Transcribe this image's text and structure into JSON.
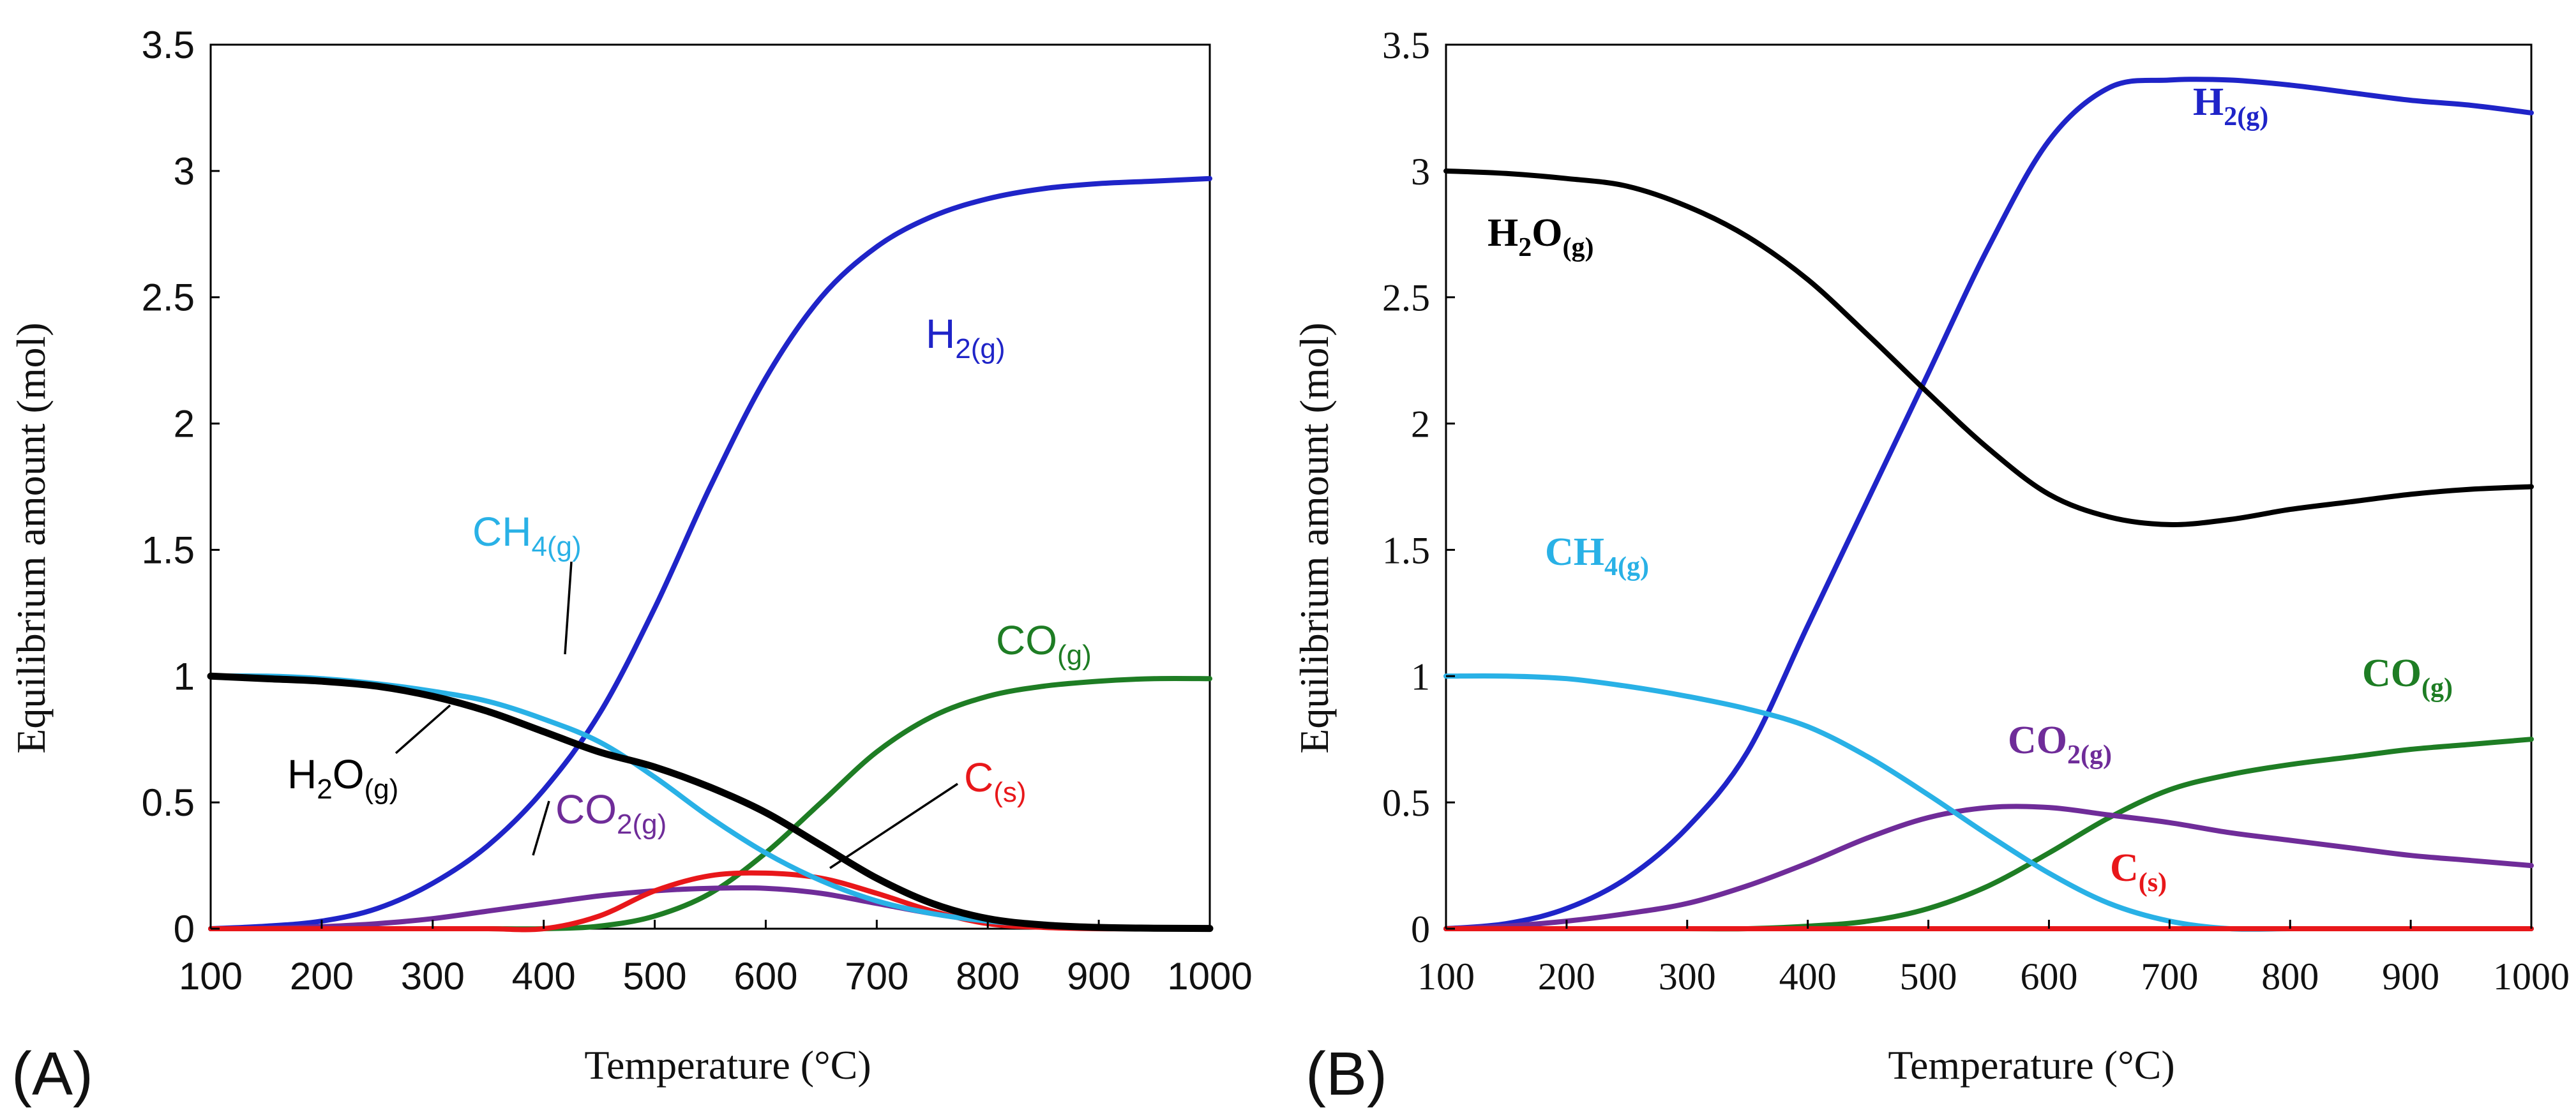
{
  "chart_data": [
    {
      "type": "line",
      "panel_label": "(A)",
      "title": "",
      "xlabel": "Temperature (°C)",
      "ylabel": "Equilibrium amount (mol)",
      "xlim": [
        100,
        1000
      ],
      "ylim": [
        0,
        3.5
      ],
      "x_ticks": [
        "100",
        "200",
        "300",
        "400",
        "500",
        "600",
        "700",
        "800",
        "900",
        "1000"
      ],
      "y_ticks": [
        "0",
        "0.5",
        "1",
        "1.5",
        "2",
        "2.5",
        "3",
        "3.5"
      ],
      "grid": false,
      "legend": "inline labels",
      "x": [
        100,
        150,
        200,
        250,
        300,
        350,
        400,
        450,
        500,
        550,
        600,
        650,
        700,
        750,
        800,
        850,
        900,
        950,
        1000
      ],
      "series": [
        {
          "name": "H2(g)",
          "base": "H",
          "sub": "2(g)",
          "color": "#1f24c8",
          "values": [
            0.0,
            0.01,
            0.03,
            0.08,
            0.18,
            0.33,
            0.55,
            0.85,
            1.27,
            1.75,
            2.18,
            2.5,
            2.7,
            2.82,
            2.89,
            2.93,
            2.95,
            2.96,
            2.97
          ]
        },
        {
          "name": "CH4(g)",
          "base": "CH",
          "sub": "4(g)",
          "color": "#29b1e6",
          "values": [
            1.0,
            1.0,
            0.99,
            0.97,
            0.94,
            0.9,
            0.83,
            0.74,
            0.6,
            0.44,
            0.3,
            0.19,
            0.11,
            0.06,
            0.03,
            0.015,
            0.007,
            0.003,
            0.001
          ]
        },
        {
          "name": "H2O(g)",
          "base": "H",
          "sub": "2",
          "base2": "O",
          "sub2": "(g)",
          "color": "#000000",
          "values": [
            1.0,
            0.99,
            0.98,
            0.96,
            0.92,
            0.86,
            0.78,
            0.7,
            0.64,
            0.56,
            0.46,
            0.33,
            0.2,
            0.1,
            0.04,
            0.015,
            0.005,
            0.002,
            0.001
          ]
        },
        {
          "name": "CO(g)",
          "base": "CO",
          "sub": "(g)",
          "color": "#1e7d24",
          "values": [
            0,
            0,
            0,
            0,
            0,
            0,
            0.0,
            0.01,
            0.05,
            0.14,
            0.3,
            0.5,
            0.7,
            0.84,
            0.92,
            0.96,
            0.98,
            0.99,
            0.99
          ]
        },
        {
          "name": "CO2(g)",
          "base": "CO",
          "sub": "2(g)",
          "color": "#6f2c99",
          "values": [
            0,
            0.002,
            0.008,
            0.02,
            0.04,
            0.07,
            0.1,
            0.13,
            0.15,
            0.16,
            0.16,
            0.14,
            0.1,
            0.06,
            0.03,
            0.015,
            0.006,
            0.002,
            0.001
          ]
        },
        {
          "name": "C(s)",
          "base": "C",
          "sub": "(s)",
          "color": "#e8171a",
          "values": [
            0,
            0,
            0,
            0,
            0,
            0,
            0.0,
            0.05,
            0.15,
            0.21,
            0.22,
            0.2,
            0.14,
            0.07,
            0.02,
            0.005,
            0.0,
            0.0,
            0.0
          ]
        }
      ]
    },
    {
      "type": "line",
      "panel_label": "(B)",
      "title": "",
      "xlabel": "Temperature (°C)",
      "ylabel": "Equilibrium amount (mol)",
      "xlim": [
        100,
        1000
      ],
      "ylim": [
        0,
        3.5
      ],
      "x_ticks": [
        "100",
        "200",
        "300",
        "400",
        "500",
        "600",
        "700",
        "800",
        "900",
        "1000"
      ],
      "y_ticks": [
        "0",
        "0.5",
        "1",
        "1.5",
        "2",
        "2.5",
        "3",
        "3.5"
      ],
      "grid": false,
      "legend": "inline labels",
      "x": [
        100,
        150,
        200,
        250,
        300,
        350,
        400,
        450,
        500,
        550,
        600,
        650,
        700,
        750,
        800,
        850,
        900,
        950,
        1000
      ],
      "series": [
        {
          "name": "H2(g)",
          "base": "H",
          "sub": "2(g)",
          "color": "#1f24c8",
          "values": [
            0.0,
            0.02,
            0.08,
            0.2,
            0.4,
            0.7,
            1.2,
            1.7,
            2.2,
            2.7,
            3.12,
            3.33,
            3.36,
            3.36,
            3.34,
            3.31,
            3.28,
            3.26,
            3.23
          ]
        },
        {
          "name": "H2O(g)",
          "base": "H",
          "sub": "2",
          "base2": "O",
          "sub2": "(g)",
          "color": "#000000",
          "values": [
            3.0,
            2.99,
            2.97,
            2.94,
            2.86,
            2.74,
            2.57,
            2.35,
            2.12,
            1.9,
            1.72,
            1.63,
            1.6,
            1.62,
            1.66,
            1.69,
            1.72,
            1.74,
            1.75
          ]
        },
        {
          "name": "CH4(g)",
          "base": "CH",
          "sub": "4(g)",
          "color": "#29b1e6",
          "values": [
            1.0,
            1.0,
            0.99,
            0.96,
            0.92,
            0.87,
            0.8,
            0.68,
            0.53,
            0.37,
            0.22,
            0.1,
            0.03,
            0.0,
            0.0,
            0.0,
            0.0,
            0.0,
            0.0
          ]
        },
        {
          "name": "CO2(g)",
          "base": "CO",
          "sub": "2(g)",
          "color": "#6f2c99",
          "values": [
            0,
            0.01,
            0.03,
            0.06,
            0.1,
            0.17,
            0.26,
            0.36,
            0.44,
            0.48,
            0.48,
            0.45,
            0.42,
            0.38,
            0.35,
            0.32,
            0.29,
            0.27,
            0.25
          ]
        },
        {
          "name": "CO(g)",
          "base": "CO",
          "sub": "(g)",
          "color": "#1e7d24",
          "values": [
            0,
            0,
            0,
            0,
            0,
            0.0,
            0.01,
            0.03,
            0.08,
            0.17,
            0.3,
            0.44,
            0.55,
            0.61,
            0.65,
            0.68,
            0.71,
            0.73,
            0.75
          ]
        },
        {
          "name": "C(s)",
          "base": "C",
          "sub": "(s)",
          "color": "#e8171a",
          "values": [
            0,
            0,
            0,
            0,
            0,
            0,
            0,
            0,
            0,
            0,
            0,
            0,
            0,
            0,
            0,
            0,
            0,
            0,
            0
          ]
        }
      ]
    }
  ]
}
